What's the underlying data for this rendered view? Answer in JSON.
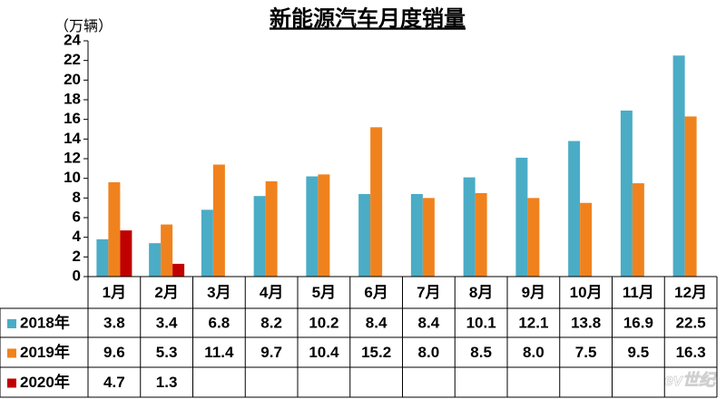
{
  "chart_data": {
    "type": "bar",
    "title": "新能源汽车月度销量",
    "y_label": "（万辆）",
    "categories": [
      "1月",
      "2月",
      "3月",
      "4月",
      "5月",
      "6月",
      "7月",
      "8月",
      "9月",
      "10月",
      "11月",
      "12月"
    ],
    "series": [
      {
        "name": "2018年",
        "color": "#4bacc6",
        "values": [
          3.8,
          3.4,
          6.8,
          8.2,
          10.2,
          8.4,
          8.4,
          10.1,
          12.1,
          13.8,
          16.9,
          22.5
        ],
        "value_labels": [
          "3.8",
          "3.4",
          "6.8",
          "8.2",
          "10.2",
          "8.4",
          "8.4",
          "10.1",
          "12.1",
          "13.8",
          "16.9",
          "22.5"
        ]
      },
      {
        "name": "2019年",
        "color": "#f0821e",
        "values": [
          9.6,
          5.3,
          11.4,
          9.7,
          10.4,
          15.2,
          8.0,
          8.5,
          8.0,
          7.5,
          9.5,
          16.3
        ],
        "value_labels": [
          "9.6",
          "5.3",
          "11.4",
          "9.7",
          "10.4",
          "15.2",
          "8.0",
          "8.5",
          "8.0",
          "7.5",
          "9.5",
          "16.3"
        ]
      },
      {
        "name": "2020年",
        "color": "#c00000",
        "values": [
          4.7,
          1.3,
          null,
          null,
          null,
          null,
          null,
          null,
          null,
          null,
          null,
          null
        ],
        "value_labels": [
          "4.7",
          "1.3",
          null,
          null,
          null,
          null,
          null,
          null,
          null,
          null,
          null,
          null
        ]
      }
    ],
    "ylim": [
      0,
      24
    ],
    "yticks": [
      0,
      2,
      4,
      6,
      8,
      10,
      12,
      14,
      16,
      18,
      20,
      22,
      24
    ],
    "watermark": "ev世纪"
  }
}
